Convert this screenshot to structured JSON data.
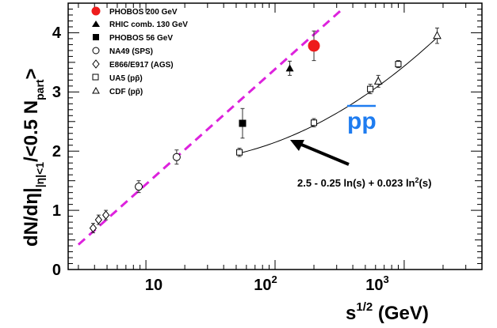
{
  "chart_data": {
    "type": "scatter",
    "x_scale": "log",
    "xlim": [
      2.5,
      4000
    ],
    "ylim": [
      0,
      4.5
    ],
    "y_ticks": [
      0,
      1,
      2,
      3,
      4
    ],
    "x_tick_labels": [
      {
        "value": 10,
        "base": "10",
        "exp": ""
      },
      {
        "value": 100,
        "base": "10",
        "exp": "2"
      },
      {
        "value": 1000,
        "base": "10",
        "exp": "3"
      }
    ],
    "y_tick_labels": [
      "0",
      "1",
      "2",
      "3",
      "4"
    ],
    "xlabel_main": "s",
    "xlabel_exp": "1/2",
    "xlabel_unit": " (GeV)",
    "ylabel_main": "dN/dη|",
    "ylabel_sub": "|η|<1",
    "ylabel_tail": "/<0.5 N",
    "ylabel_sub2": "part",
    "ylabel_close": ">",
    "legend": [
      {
        "label": "PHOBOS 200 GeV",
        "marker": "circle-filled-red"
      },
      {
        "label": "RHIC comb. 130 GeV",
        "marker": "triangle-filled"
      },
      {
        "label": "PHOBOS 56 GeV",
        "marker": "square-filled"
      },
      {
        "label": "NA49 (SPS)",
        "marker": "circle-open"
      },
      {
        "label": "E866/E917 (AGS)",
        "marker": "diamond-open"
      },
      {
        "label": "UA5 (pp̄)",
        "marker": "square-open"
      },
      {
        "label": "CDF (pp̄)",
        "marker": "triangle-open"
      }
    ],
    "series": [
      {
        "name": "PHOBOS 200 GeV",
        "marker": "circle-filled-red",
        "points": [
          {
            "x": 200,
            "y": 3.78,
            "err": 0.25
          }
        ]
      },
      {
        "name": "RHIC comb. 130 GeV",
        "marker": "triangle-filled",
        "points": [
          {
            "x": 130,
            "y": 3.4,
            "err": 0.12
          }
        ]
      },
      {
        "name": "PHOBOS 56 GeV",
        "marker": "square-filled",
        "points": [
          {
            "x": 56,
            "y": 2.47,
            "err": 0.25
          }
        ]
      },
      {
        "name": "NA49 (SPS)",
        "marker": "circle-open",
        "points": [
          {
            "x": 8.8,
            "y": 1.4,
            "err": 0.1
          },
          {
            "x": 17.3,
            "y": 1.9,
            "err": 0.12
          }
        ]
      },
      {
        "name": "E866/E917 (AGS)",
        "marker": "diamond-open",
        "points": [
          {
            "x": 3.9,
            "y": 0.7,
            "err": 0.08
          },
          {
            "x": 4.3,
            "y": 0.84,
            "err": 0.08
          },
          {
            "x": 4.9,
            "y": 0.92,
            "err": 0.08
          }
        ]
      },
      {
        "name": "UA5 (pp̄)",
        "marker": "square-open",
        "points": [
          {
            "x": 53,
            "y": 1.98,
            "err": 0.07
          },
          {
            "x": 200,
            "y": 2.48,
            "err": 0.07
          },
          {
            "x": 546,
            "y": 3.05,
            "err": 0.08
          },
          {
            "x": 900,
            "y": 3.47,
            "err": 0.06
          }
        ]
      },
      {
        "name": "CDF (pp̄)",
        "marker": "triangle-open",
        "points": [
          {
            "x": 630,
            "y": 3.18,
            "err": 0.1
          },
          {
            "x": 1800,
            "y": 3.95,
            "err": 0.13
          }
        ]
      }
    ],
    "dashed_fit": {
      "x": [
        3.0,
        340
      ],
      "y": [
        0.42,
        4.42
      ],
      "color": "#dd22dd"
    },
    "pp_fit": {
      "formula": "2.5 - 0.25 ln(s) + 0.023 ln²(s)",
      "x_from": 53,
      "x_to": 1800
    },
    "annotation_pp": "pp",
    "annotation_formula": "2.5 - 0.25 ln(s) + 0.023 ln",
    "annotation_formula_exp": "2",
    "annotation_formula_tail": "(s)",
    "colors": {
      "red": "#ee1c1c",
      "magenta": "#dd22dd",
      "blue": "#1e7cf0"
    }
  }
}
